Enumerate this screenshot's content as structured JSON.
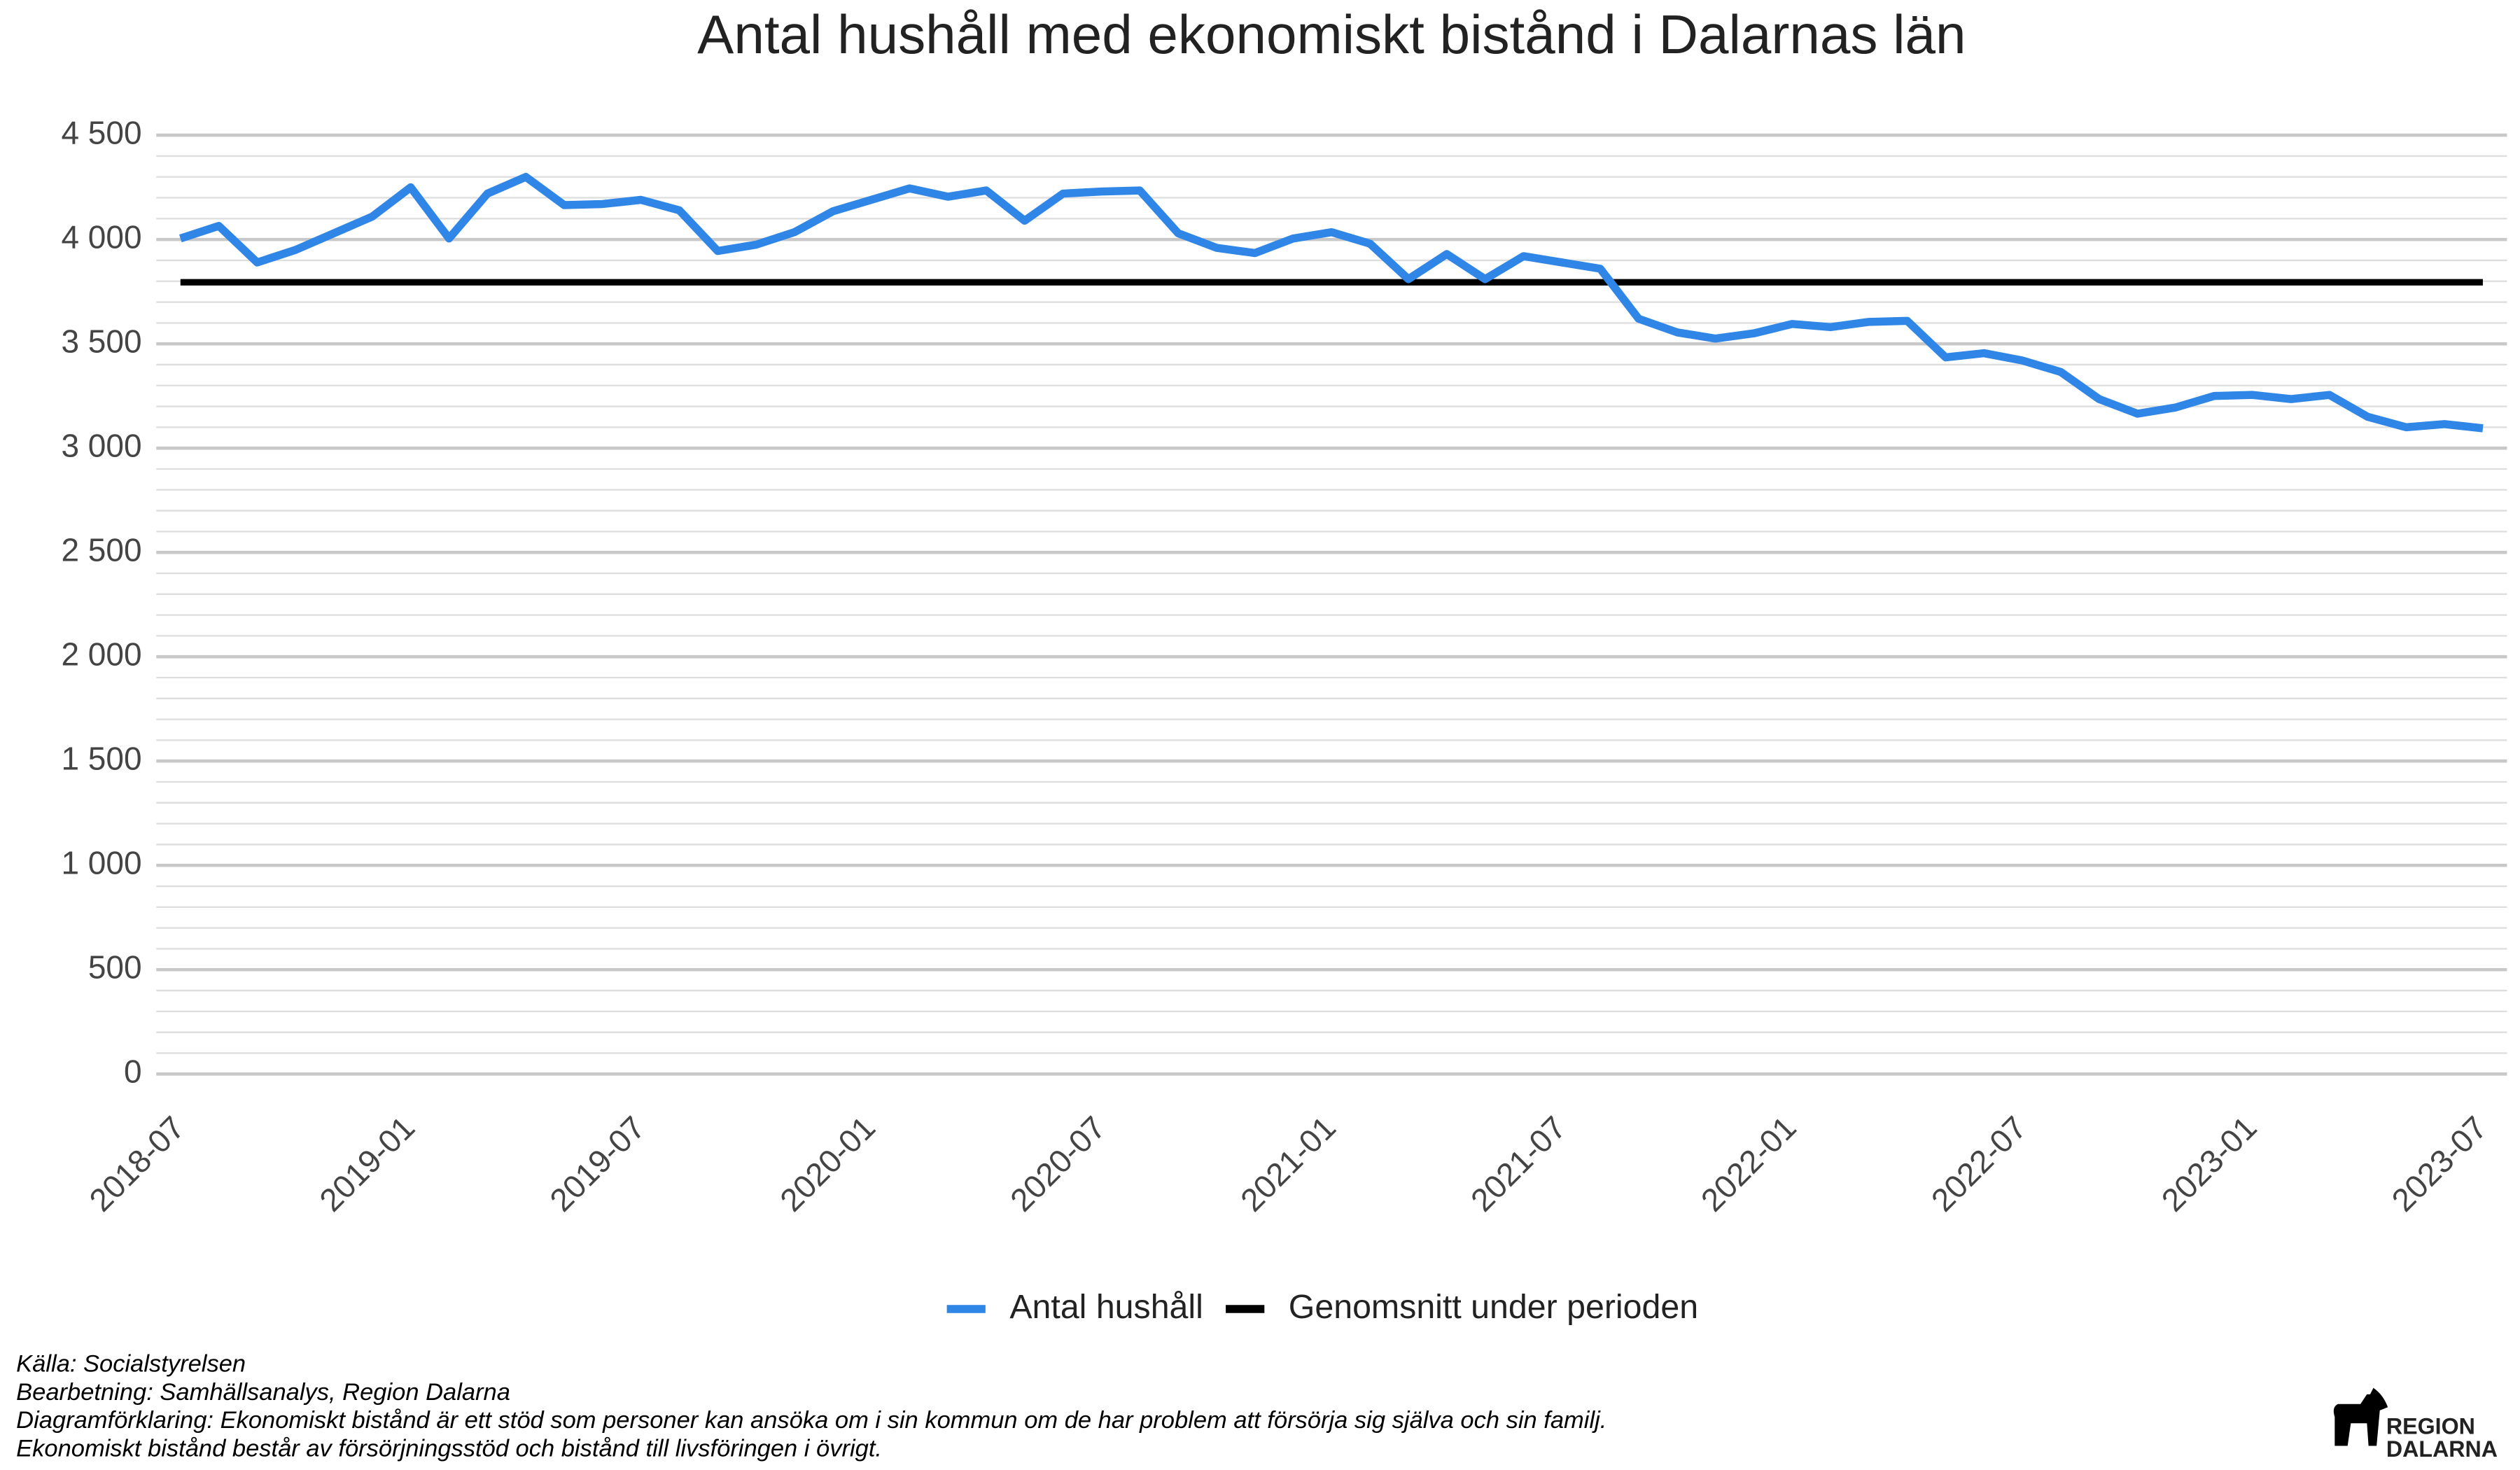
{
  "chart_data": {
    "type": "line",
    "title": "Antal hushåll med ekonomiskt bistånd i Dalarnas län",
    "categories": [
      "2018-07",
      null,
      null,
      null,
      null,
      null,
      "2019-01",
      null,
      null,
      null,
      null,
      null,
      "2019-07",
      null,
      null,
      null,
      null,
      null,
      "2020-01",
      null,
      null,
      null,
      null,
      null,
      "2020-07",
      null,
      null,
      null,
      null,
      null,
      "2021-01",
      null,
      null,
      null,
      null,
      null,
      "2021-07",
      null,
      null,
      null,
      null,
      null,
      "2022-01",
      null,
      null,
      null,
      null,
      null,
      "2022-07",
      null,
      null,
      null,
      null,
      null,
      "2023-01",
      null,
      null,
      null,
      null,
      null,
      "2023-07"
    ],
    "series": [
      {
        "name": "Antal hushåll",
        "color": "#2f86e6",
        "values": [
          4005,
          4065,
          3890,
          3950,
          4030,
          4110,
          4250,
          4005,
          4220,
          4300,
          4165,
          4170,
          4190,
          4140,
          3945,
          3975,
          4035,
          4135,
          4190,
          4245,
          4205,
          4235,
          4090,
          4220,
          4230,
          4235,
          4030,
          3960,
          3935,
          4005,
          4035,
          3980,
          3810,
          3930,
          3810,
          3920,
          3890,
          3860,
          3620,
          3555,
          3525,
          3550,
          3595,
          3580,
          3605,
          3610,
          3435,
          3455,
          3420,
          3365,
          3235,
          3165,
          3195,
          3250,
          3255,
          3235,
          3255,
          3150,
          3100,
          3115,
          3095
        ]
      }
    ],
    "average": {
      "name": "Genomsnitt under perioden",
      "color": "#000000",
      "value": 3795
    },
    "ylim": [
      -100,
      4600
    ],
    "yticks": [
      0,
      500,
      {
        "value": 1000,
        "label": "1 000"
      },
      {
        "value": 1500,
        "label": "1 500"
      },
      {
        "value": 2000,
        "label": "2 000"
      },
      {
        "value": 2500,
        "label": "2 500"
      },
      {
        "value": 3000,
        "label": "3 000"
      },
      {
        "value": 3500,
        "label": "3 500"
      },
      {
        "value": 4000,
        "label": "4 000"
      },
      {
        "value": 4500,
        "label": "4 500"
      }
    ],
    "minor_yticks": [
      100,
      200,
      300,
      400,
      600,
      700,
      800,
      900,
      1100,
      1200,
      1300,
      1400,
      1600,
      1700,
      1800,
      1900,
      2100,
      2200,
      2300,
      2400,
      2600,
      2700,
      2800,
      2900,
      3100,
      3200,
      3300,
      3400,
      3600,
      3700,
      3800,
      3900,
      4100,
      4200,
      4300,
      4400
    ],
    "grid": true,
    "legend": "bottom",
    "notes": [
      "Källa: Socialstyrelsen",
      "Bearbetning: Samhällsanalys, Region Dalarna",
      "Diagramförklaring: Ekonomiskt bistånd är ett stöd som personer kan ansöka om i sin kommun om de har problem att försörja sig själva och sin familj.",
      "Ekonomiskt bistånd består av försörjningsstöd och bistånd till livsföringen i övrigt."
    ],
    "logo": [
      "REGION",
      "DALARNA"
    ]
  }
}
